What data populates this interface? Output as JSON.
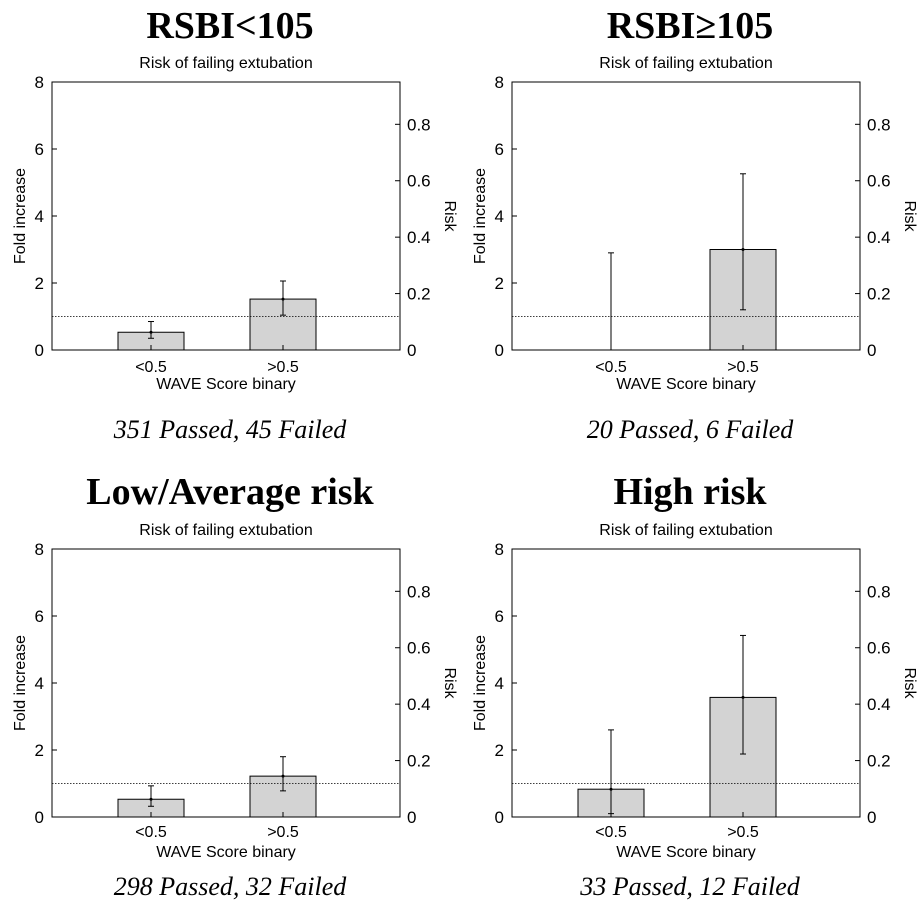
{
  "chart_data": [
    {
      "type": "bar",
      "panel_title": "RSBI<105",
      "title": "Risk of failing extubation",
      "xlabel": "WAVE Score binary",
      "ylabel": "Fold increase",
      "ylabel_right": "Risk",
      "categories": [
        "<0.5",
        ">0.5"
      ],
      "values": [
        0.53,
        1.52
      ],
      "error_low": [
        0.35,
        1.04
      ],
      "error_high": [
        0.85,
        2.06
      ],
      "reference_line": 1,
      "ylim": [
        0,
        8
      ],
      "yticks": [
        0,
        2,
        4,
        6,
        8
      ],
      "ylim_right": [
        0,
        0.95
      ],
      "yticks_right": [
        "0",
        "0.2",
        "0.4",
        "0.6",
        "0.8"
      ],
      "caption": "351 Passed, 45 Failed"
    },
    {
      "type": "bar",
      "panel_title": "RSBI≥105",
      "title": "Risk of failing extubation",
      "xlabel": "WAVE Score binary",
      "ylabel": "Fold increase",
      "ylabel_right": "Risk",
      "categories": [
        "<0.5",
        ">0.5"
      ],
      "values": [
        0,
        3.0
      ],
      "error_low": [
        0,
        1.2
      ],
      "error_high": [
        2.9,
        5.26
      ],
      "reference_line": 1,
      "ylim": [
        0,
        8
      ],
      "yticks": [
        0,
        2,
        4,
        6,
        8
      ],
      "ylim_right": [
        0,
        0.95
      ],
      "yticks_right": [
        "0",
        "0.2",
        "0.4",
        "0.6",
        "0.8"
      ],
      "caption": "20 Passed, 6 Failed"
    },
    {
      "type": "bar",
      "panel_title": "Low/Average risk",
      "title": "Risk of failing extubation",
      "xlabel": "WAVE Score binary",
      "ylabel": "Fold increase",
      "ylabel_right": "Risk",
      "categories": [
        "<0.5",
        ">0.5"
      ],
      "values": [
        0.53,
        1.22
      ],
      "error_low": [
        0.32,
        0.78
      ],
      "error_high": [
        0.93,
        1.8
      ],
      "reference_line": 1,
      "ylim": [
        0,
        8
      ],
      "yticks": [
        0,
        2,
        4,
        6,
        8
      ],
      "ylim_right": [
        0,
        0.95
      ],
      "yticks_right": [
        "0",
        "0.2",
        "0.4",
        "0.6",
        "0.8"
      ],
      "caption": "298 Passed, 32 Failed"
    },
    {
      "type": "bar",
      "panel_title": "High risk",
      "title": "Risk of failing extubation",
      "xlabel": "WAVE Score binary",
      "ylabel": "Fold increase",
      "ylabel_right": "Risk",
      "categories": [
        "<0.5",
        ">0.5"
      ],
      "values": [
        0.83,
        3.57
      ],
      "error_low": [
        0.1,
        1.88
      ],
      "error_high": [
        2.6,
        5.42
      ],
      "reference_line": 1,
      "ylim": [
        0,
        8
      ],
      "yticks": [
        0,
        2,
        4,
        6,
        8
      ],
      "ylim_right": [
        0,
        0.95
      ],
      "yticks_right": [
        "0",
        "0.2",
        "0.4",
        "0.6",
        "0.8"
      ],
      "caption": "33 Passed, 12 Failed"
    }
  ]
}
